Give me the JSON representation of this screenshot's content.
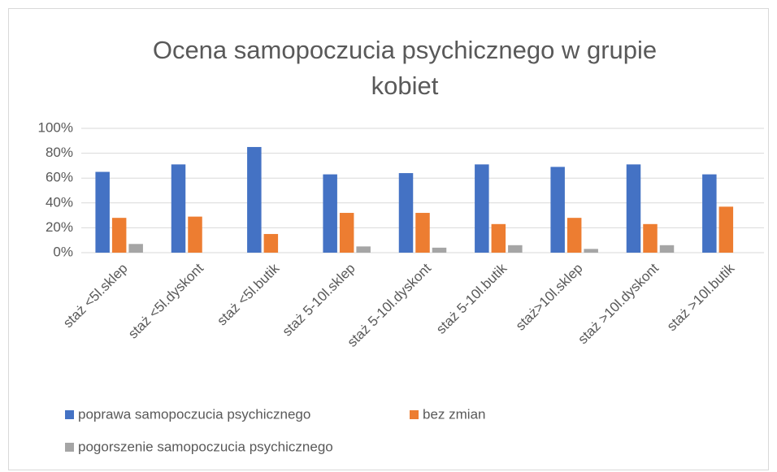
{
  "chart_data": {
    "type": "bar",
    "title": "Ocena samopoczucia psychicznego w grupie kobiet",
    "categories": [
      "staż <5l.sklep",
      "staż <5l.dyskont",
      "staż <5l.butik",
      "staż 5-10l.sklep",
      "staż 5-10l.dyskont",
      "staż 5-10l.butik",
      "staż>10l.sklep",
      "staż >10l.dyskont",
      "staż >10l.butik"
    ],
    "series": [
      {
        "name": "poprawa samopoczucia psychicznego",
        "color": "#4472c4",
        "values": [
          65,
          71,
          85,
          63,
          64,
          71,
          69,
          71,
          63
        ]
      },
      {
        "name": "bez zmian",
        "color": "#ed7d31",
        "values": [
          28,
          29,
          15,
          32,
          32,
          23,
          28,
          23,
          37
        ]
      },
      {
        "name": "pogorszenie samopoczucia psychicznego",
        "color": "#a5a5a5",
        "values": [
          7,
          0,
          0,
          5,
          4,
          6,
          3,
          6,
          0
        ]
      }
    ],
    "ylim": [
      0,
      100
    ],
    "yticks": [
      {
        "value": 0,
        "label": "0%"
      },
      {
        "value": 20,
        "label": "20%"
      },
      {
        "value": 40,
        "label": "40%"
      },
      {
        "value": 60,
        "label": "60%"
      },
      {
        "value": 80,
        "label": "80%"
      },
      {
        "value": 100,
        "label": "100%"
      }
    ],
    "grid": true,
    "legend": "bottom"
  }
}
